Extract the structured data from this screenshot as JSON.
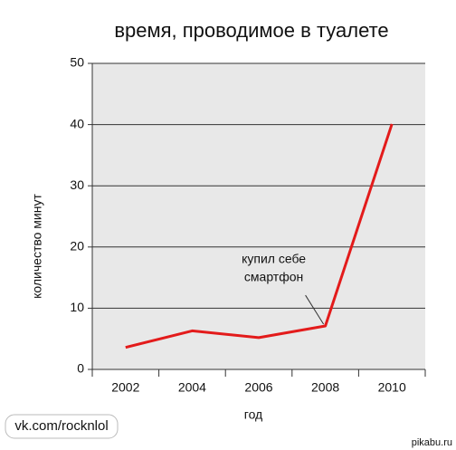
{
  "chart_data": {
    "type": "line",
    "title": "время, проводимое в туалете",
    "x_label": "год",
    "y_label": "количество минут",
    "categories": [
      "2002",
      "2004",
      "2006",
      "2008",
      "2010"
    ],
    "series": [
      {
        "color": "#e31b1b",
        "values": [
          3.6,
          6.3,
          5.2,
          7.1,
          40.1
        ]
      }
    ],
    "ylim": [
      0,
      50
    ],
    "yticks": [
      0,
      10,
      20,
      30,
      40,
      50
    ],
    "grid": true,
    "annotation": [
      "купил себе",
      "смартфон"
    ]
  },
  "watermarks": [
    "vk.com/rocknlol",
    "pikabu.ru"
  ]
}
